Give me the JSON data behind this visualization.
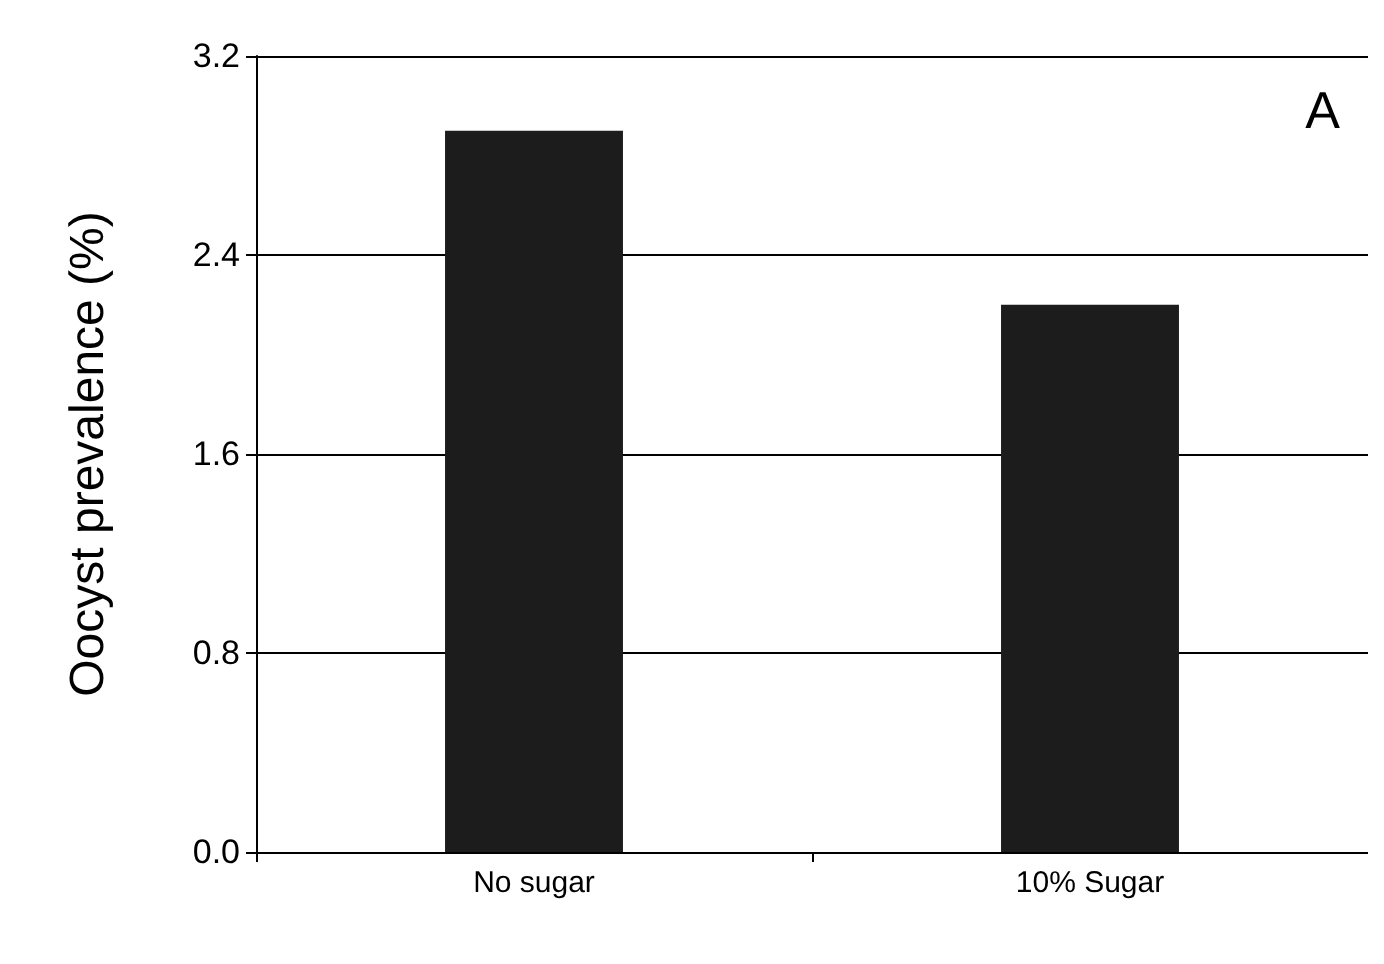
{
  "chart_data": {
    "type": "bar",
    "ylabel": "Oocyst prevalence (%)",
    "categories": [
      "No sugar",
      "10% Sugar"
    ],
    "values": [
      2.9,
      2.2
    ],
    "color": "#1c1c1c",
    "ylim": [
      0,
      3.2
    ],
    "yticks": [
      {
        "value": 0,
        "label": "0.0"
      },
      {
        "value": 0.8,
        "label": "0.8"
      },
      {
        "value": 1.6,
        "label": "1.6"
      },
      {
        "value": 2.4,
        "label": "2.4"
      },
      {
        "value": 3.2,
        "label": "3.2"
      }
    ],
    "grid": "y",
    "annotations": [
      "A"
    ]
  }
}
